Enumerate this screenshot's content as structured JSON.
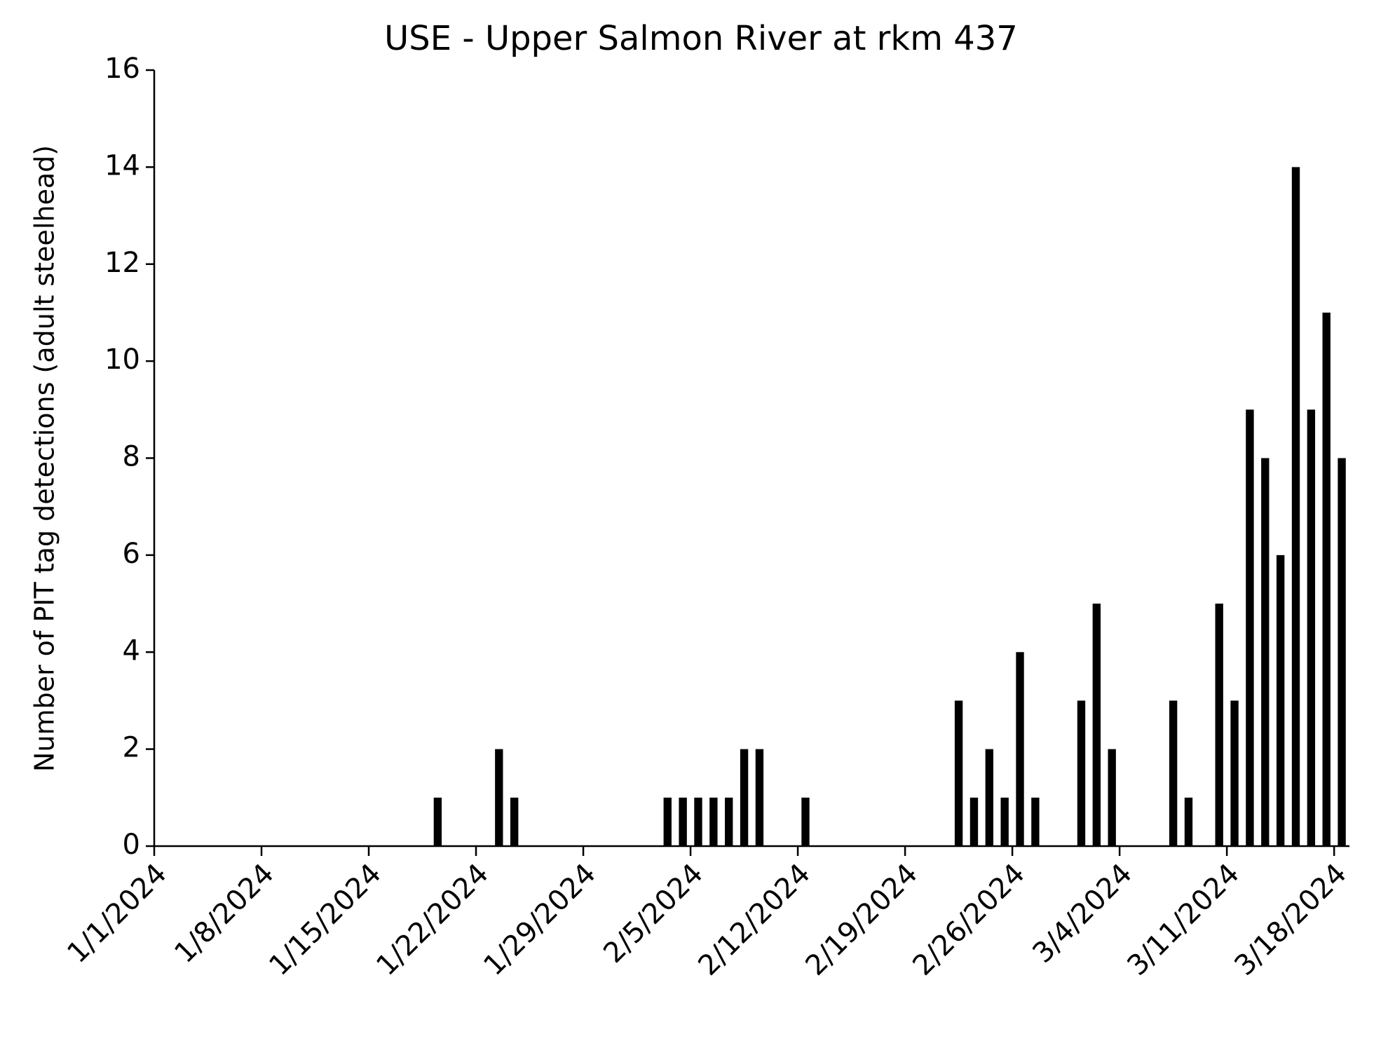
{
  "chart_data": {
    "type": "bar",
    "title": "USE - Upper Salmon River at rkm 437",
    "y_label": "Number of PIT tag detections (adult steelhead)",
    "x": [
      "1/19/2024",
      "1/23/2024",
      "1/24/2024",
      "2/3/2024",
      "2/4/2024",
      "2/5/2024",
      "2/6/2024",
      "2/7/2024",
      "2/8/2024",
      "2/9/2024",
      "2/12/2024",
      "2/22/2024",
      "2/23/2024",
      "2/24/2024",
      "2/25/2024",
      "2/26/2024",
      "2/27/2024",
      "3/1/2024",
      "3/2/2024",
      "3/3/2024",
      "3/7/2024",
      "3/8/2024",
      "3/10/2024",
      "3/11/2024",
      "3/12/2024",
      "3/13/2024",
      "3/14/2024",
      "3/15/2024",
      "3/16/2024",
      "3/17/2024",
      "3/18/2024"
    ],
    "values": [
      1,
      2,
      1,
      1,
      1,
      1,
      1,
      1,
      2,
      2,
      1,
      3,
      1,
      2,
      1,
      4,
      1,
      3,
      5,
      2,
      3,
      1,
      5,
      3,
      9,
      8,
      6,
      14,
      9,
      11,
      8
    ],
    "color": "#000000",
    "xlim": [
      "1/1/2024",
      "3/19/2024"
    ],
    "xticks": [
      "1/1/2024",
      "1/8/2024",
      "1/15/2024",
      "1/22/2024",
      "1/29/2024",
      "2/5/2024",
      "2/12/2024",
      "2/19/2024",
      "2/26/2024",
      "3/4/2024",
      "3/11/2024",
      "3/18/2024"
    ],
    "ylim": [
      0,
      16
    ],
    "yticks": [
      0,
      2,
      4,
      6,
      8,
      10,
      12,
      14,
      16
    ],
    "grid": false
  }
}
